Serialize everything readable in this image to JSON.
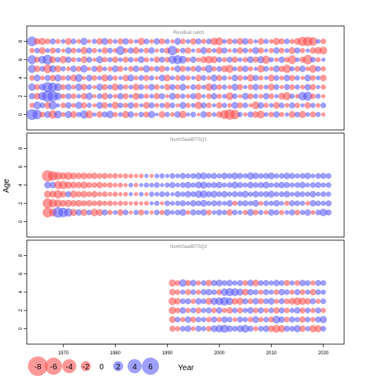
{
  "chart_data": {
    "type": "scatter",
    "subtype": "bubble-residuals",
    "ylabel": "Age",
    "xlabel": "Year",
    "x_ticks": [
      1970,
      1980,
      1990,
      2000,
      2010,
      2020
    ],
    "xlim": [
      1963,
      2024
    ],
    "colors": {
      "positive": "#5555ff",
      "negative": "#ff5555",
      "positive_fill": "rgba(80,80,255,0.55)",
      "negative_fill": "rgba(255,70,70,0.55)"
    },
    "legend": {
      "placement": "bottom-left",
      "values": [
        -8,
        -6,
        -4,
        -2,
        0,
        2,
        4,
        6
      ],
      "labels": [
        "-8",
        "-6",
        "-4",
        "-2",
        "0",
        "2",
        "4",
        "6"
      ]
    },
    "panels": [
      {
        "title": "Residual catch",
        "y_ticks": [
          0,
          2,
          4,
          6,
          8
        ],
        "ylim": [
          -1,
          9
        ],
        "ages": [
          0,
          1,
          2,
          3,
          4,
          5,
          6,
          7,
          8
        ],
        "year_start": 1964,
        "year_end": 2020,
        "residuals": [
          [
            2.4,
            1.8,
            -0.6,
            0.9,
            -1.4,
            1.2,
            -0.4,
            1.0,
            -0.9,
            0.5,
            1.3,
            -1.2,
            0.3,
            -0.8,
            0.7,
            1.1,
            -0.5,
            0.4,
            -1.0,
            0.8,
            -0.3,
            0.6,
            -0.7,
            1.0,
            0.2,
            -0.9,
            0.5,
            -0.4,
            0.8,
            -1.1,
            0.3,
            0.6,
            -0.2,
            0.9,
            -0.6,
            0.4,
            -0.8,
            -1.6,
            -2.2,
            -1.8,
            0.5,
            -0.3,
            0.7,
            -0.9,
            -1.2,
            0.4,
            -0.6,
            0.8,
            -0.5,
            0.3,
            -0.9,
            0.6,
            -1.0,
            0.4,
            -0.7,
            0.5,
            -0.3
          ],
          [
            -0.5,
            1.2,
            0.6,
            -0.9,
            1.4,
            0.3,
            -0.6,
            0.8,
            -0.4,
            1.0,
            -0.7,
            0.5,
            -0.3,
            0.9,
            -0.8,
            0.4,
            -1.0,
            0.6,
            -0.5,
            0.8,
            -0.6,
            0.3,
            -0.9,
            0.7,
            -0.4,
            0.5,
            -0.8,
            0.6,
            -0.3,
            0.9,
            -0.5,
            0.4,
            -1.1,
            0.7,
            -0.6,
            0.3,
            -0.8,
            0.5,
            -0.4,
            0.9,
            -0.7,
            0.6,
            -0.3,
            -1.2,
            0.8,
            -0.5,
            0.4,
            -0.9,
            0.6,
            -0.4,
            0.7,
            -0.6,
            0.3,
            -0.8,
            0.5,
            -0.4,
            0.6
          ],
          [
            0.8,
            -0.9,
            1.3,
            2.6,
            2.2,
            1.1,
            -0.5,
            0.7,
            -0.6,
            0.4,
            -0.8,
            1.0,
            -0.3,
            0.6,
            -0.9,
            0.5,
            -0.4,
            0.8,
            -0.7,
            0.3,
            -1.0,
            0.6,
            -0.5,
            0.4,
            -0.8,
            0.7,
            -0.3,
            0.9,
            -0.6,
            0.5,
            -0.4,
            0.7,
            -0.9,
            0.3,
            -0.6,
            0.8,
            -0.5,
            0.4,
            -1.2,
            0.6,
            -0.3,
            0.9,
            -0.7,
            0.5,
            -0.4,
            0.8,
            -0.6,
            0.3,
            -0.9,
            -1.3,
            0.5,
            -0.4,
            1.4,
            1.6,
            -0.6,
            0.5,
            -0.3
          ],
          [
            1.1,
            -0.7,
            0.9,
            2.0,
            1.6,
            1.2,
            -0.6,
            0.8,
            -0.4,
            1.0,
            -0.8,
            0.6,
            -0.3,
            0.9,
            -0.7,
            0.5,
            -1.0,
            0.7,
            -0.5,
            0.4,
            -0.9,
            0.6,
            -0.4,
            0.8,
            -0.6,
            0.3,
            -0.8,
            0.7,
            -0.5,
            0.9,
            -0.3,
            0.6,
            -0.7,
            0.4,
            -1.1,
            0.8,
            -0.6,
            0.5,
            -0.4,
            0.9,
            -0.7,
            0.3,
            -0.6,
            0.8,
            -0.5,
            0.4,
            -0.9,
            0.6,
            -0.3,
            0.7,
            -0.6,
            0.5,
            -0.4,
            0.8,
            -0.7,
            0.3,
            -0.5
          ],
          [
            -0.6,
            0.9,
            -0.4,
            0.7,
            -0.8,
            1.0,
            -0.5,
            0.6,
            -0.9,
            1.2,
            -0.3,
            0.8,
            -0.6,
            0.4,
            -1.0,
            0.7,
            -0.5,
            0.3,
            -0.8,
            0.9,
            -0.4,
            0.6,
            -0.7,
            0.5,
            -0.3,
            0.8,
            -0.9,
            0.4,
            -0.6,
            0.7,
            -0.5,
            0.3,
            -0.8,
            0.6,
            -0.4,
            0.9,
            -0.7,
            0.5,
            -0.3,
            0.8,
            -0.6,
            0.4,
            -1.0,
            0.7,
            -0.5,
            0.3,
            -0.9,
            0.6,
            -0.4,
            0.8,
            -0.7,
            0.5,
            -0.3,
            0.9,
            -0.6,
            0.4,
            -0.8
          ],
          [
            1.3,
            -0.8,
            0.6,
            -1.5,
            1.0,
            -0.9,
            0.5,
            -0.4,
            0.8,
            -0.6,
            1.1,
            -0.3,
            0.7,
            -0.9,
            0.4,
            -0.5,
            0.9,
            -0.7,
            0.3,
            -0.6,
            0.8,
            -0.4,
            1.0,
            -0.5,
            0.6,
            -0.8,
            0.4,
            -0.3,
            0.9,
            -0.7,
            0.5,
            -0.6,
            0.8,
            -0.4,
            1.2,
            -0.5,
            0.6,
            -0.9,
            -1.3,
            0.4,
            -0.7,
            0.8,
            -0.5,
            0.3,
            -1.1,
            0.6,
            -0.4,
            0.9,
            -0.7,
            -1.4,
            0.5,
            -0.6,
            0.8,
            -0.4,
            -1.2,
            0.6,
            -0.5
          ],
          [
            1.6,
            -0.7,
            1.2,
            1.9,
            -0.9,
            0.6,
            -1.1,
            0.8,
            -0.5,
            0.4,
            -0.9,
            0.7,
            -0.3,
            1.0,
            -0.6,
            0.5,
            -0.8,
            0.4,
            -0.7,
            0.6,
            -0.4,
            0.9,
            -0.5,
            0.3,
            -0.8,
            0.7,
            -0.6,
            1.3,
            1.6,
            1.2,
            -0.5,
            0.8,
            -0.4,
            -0.9,
            -1.2,
            -1.0,
            0.6,
            -0.5,
            0.7,
            -0.8,
            0.4,
            -0.6,
            0.9,
            -0.7,
            1.0,
            -1.3,
            0.5,
            -0.4,
            0.8,
            -0.6,
            -1.5,
            0.4,
            -0.7,
            -1.8,
            0.6,
            -0.5,
            0.3
          ],
          [
            -0.5,
            0.6,
            -0.9,
            0.4,
            -0.7,
            0.5,
            -0.3,
            0.8,
            -0.6,
            0.4,
            -1.0,
            0.7,
            -0.5,
            0.3,
            -0.8,
            0.6,
            -0.4,
            1.6,
            -0.5,
            0.7,
            -0.9,
            0.4,
            -0.6,
            0.8,
            -0.3,
            0.5,
            -0.7,
            1.8,
            -0.4,
            0.6,
            -0.8,
            0.3,
            -0.5,
            0.9,
            -0.6,
            0.4,
            -0.9,
            0.7,
            -0.3,
            0.5,
            -0.8,
            0.6,
            -0.4,
            0.9,
            -0.7,
            0.3,
            -0.5,
            0.8,
            -0.6,
            0.4,
            -0.9,
            0.7,
            -0.5,
            0.3,
            -0.8,
            -1.0,
            -1.2
          ],
          [
            1.9,
            -0.8,
            -1.0,
            -0.6,
            0.7,
            -0.5,
            0.4,
            -0.9,
            0.6,
            -0.4,
            1.0,
            -0.3,
            0.5,
            -0.8,
            0.9,
            -0.6,
            0.4,
            -0.7,
            0.8,
            -0.5,
            0.3,
            -1.0,
            0.6,
            -0.4,
            0.8,
            -0.7,
            0.5,
            -0.3,
            0.9,
            -0.6,
            0.4,
            -0.8,
            0.7,
            -0.5,
            0.6,
            -1.1,
            -1.3,
            0.4,
            -0.7,
            0.5,
            -0.9,
            0.8,
            -0.6,
            0.3,
            -0.8,
            0.5,
            -0.4,
            -1.0,
            -0.7,
            0.6,
            -0.5,
            -0.9,
            -1.7,
            -1.8,
            -1.5,
            0.4,
            -0.6
          ]
        ]
      },
      {
        "title": "NorthSeaIBTSQ1",
        "y_ticks": [
          0,
          2,
          4,
          6,
          8
        ],
        "ylim": [
          -1,
          9
        ],
        "ages": [
          1,
          2,
          3,
          4,
          5
        ],
        "year_start": 1967,
        "year_end": 2021,
        "residuals": [
          [
            -2.0,
            -1.2,
            2.2,
            1.8,
            1.4,
            -1.0,
            0.8,
            -0.9,
            0.6,
            -1.1,
            -0.9,
            0.7,
            -0.5,
            0.4,
            -0.8,
            0.6,
            -0.3,
            0.5,
            -0.7,
            0.4,
            -0.3,
            0.6,
            -0.5,
            0.8,
            0.4,
            0.6,
            0.9,
            -0.4,
            0.7,
            0.5,
            0.8,
            -0.6,
            0.4,
            0.7,
            0.5,
            -0.8,
            0.6,
            0.4,
            -0.5,
            0.9,
            -0.6,
            0.5,
            -0.4,
            0.8,
            0.6,
            -0.5,
            0.4,
            0.7,
            -0.6,
            0.5,
            0.8,
            -0.4,
            0.6,
            1.1,
            0.7
          ],
          [
            -2.0,
            -1.4,
            -1.2,
            -0.9,
            -1.0,
            -0.8,
            -0.9,
            -0.7,
            -0.8,
            -0.6,
            -0.7,
            -0.5,
            -0.6,
            -0.4,
            -0.5,
            -0.4,
            -0.3,
            -0.4,
            -0.3,
            -0.4,
            0.3,
            0.5,
            -0.3,
            0.6,
            0.4,
            0.5,
            0.7,
            0.4,
            0.8,
            0.6,
            0.9,
            0.5,
            0.7,
            0.6,
            0.4,
            0.8,
            -0.5,
            0.6,
            0.7,
            0.5,
            0.9,
            -0.4,
            0.6,
            0.5,
            0.8,
            0.4,
            -0.5,
            0.7,
            0.6,
            0.5,
            -0.4,
            0.8,
            0.6,
            0.5,
            0.7
          ],
          [
            -1.0,
            -0.9,
            -1.4,
            -0.8,
            0.7,
            -1.0,
            -0.7,
            -0.9,
            -0.6,
            -0.8,
            -0.5,
            -0.6,
            -0.4,
            -0.5,
            -0.3,
            -0.4,
            0.3,
            -0.3,
            0.4,
            -0.3,
            0.5,
            0.4,
            0.6,
            0.5,
            0.3,
            0.7,
            0.5,
            0.8,
            0.6,
            1.0,
            1.1,
            0.7,
            0.9,
            0.6,
            0.8,
            0.5,
            0.7,
            0.6,
            0.9,
            0.5,
            0.8,
            0.6,
            0.7,
            0.9,
            0.5,
            0.6,
            0.8,
            0.4,
            0.7,
            0.6,
            0.5,
            0.8,
            0.4,
            0.6,
            0.5
          ],
          [
            0.9,
            0.8,
            -1.2,
            -1.4,
            -1.0,
            -0.9,
            -0.8,
            -1.0,
            -0.7,
            -0.6,
            -0.8,
            -0.5,
            -0.6,
            -0.4,
            -0.5,
            -0.3,
            0.4,
            -0.4,
            0.3,
            0.5,
            0.4,
            0.6,
            0.3,
            0.5,
            0.7,
            0.4,
            0.6,
            0.8,
            0.5,
            0.9,
            1.0,
            0.6,
            0.7,
            0.8,
            0.5,
            0.6,
            0.9,
            0.7,
            0.5,
            0.8,
            0.6,
            0.7,
            0.9,
            0.5,
            0.6,
            0.8,
            0.7,
            0.5,
            0.6,
            0.8,
            0.4,
            0.6,
            0.7,
            0.5,
            0.6
          ],
          [
            -2.6,
            -1.8,
            -1.3,
            -1.0,
            -1.2,
            -0.9,
            -0.8,
            -0.9,
            -0.7,
            -0.8,
            -0.6,
            -0.7,
            -0.5,
            -0.6,
            -0.4,
            -0.5,
            -0.4,
            -0.3,
            -0.4,
            0.3,
            -0.3,
            0.4,
            0.5,
            0.3,
            0.6,
            0.4,
            0.7,
            0.5,
            0.6,
            0.8,
            0.9,
            0.6,
            0.7,
            0.5,
            0.8,
            0.6,
            0.9,
            0.7,
            0.5,
            1.0,
            0.8,
            0.6,
            0.7,
            0.9,
            0.5,
            0.6,
            0.8,
            0.7,
            0.5,
            0.6,
            0.8,
            0.4,
            0.6,
            0.7,
            0.6
          ]
        ]
      },
      {
        "title": "NorthSeaIBTSQ3",
        "y_ticks": [
          0,
          2,
          4,
          6,
          8
        ],
        "ylim": [
          -1,
          9
        ],
        "ages": [
          0,
          1,
          2,
          3,
          4,
          5
        ],
        "year_start": 1991,
        "year_end": 2020,
        "residuals": [
          [
            -0.7,
            -0.5,
            0.6,
            0.8,
            -0.4,
            0.7,
            0.5,
            -0.6,
            0.9,
            1.1,
            1.3,
            0.8,
            0.6,
            0.9,
            1.2,
            0.7,
            -0.5,
            0.6,
            0.8,
            -0.9,
            -1.2,
            -1.0,
            0.7,
            0.6,
            1.0,
            -0.8,
            0.5,
            -1.1,
            -1.0,
            0.6
          ],
          [
            -0.9,
            0.6,
            -0.5,
            0.8,
            -0.7,
            0.6,
            0.5,
            -0.6,
            0.7,
            -0.5,
            0.8,
            0.6,
            -0.4,
            0.7,
            0.5,
            -0.6,
            0.9,
            -0.5,
            0.6,
            -0.7,
            1.2,
            0.8,
            -0.6,
            0.7,
            0.5,
            -0.8,
            0.6,
            -0.5,
            0.7,
            1.0
          ],
          [
            -1.1,
            -0.6,
            0.8,
            -0.5,
            0.6,
            -0.7,
            0.5,
            0.7,
            -0.6,
            0.8,
            -0.5,
            -0.8,
            0.6,
            -0.7,
            0.5,
            0.8,
            -0.6,
            0.7,
            -0.5,
            0.6,
            -0.8,
            0.7,
            -0.6,
            0.5,
            0.8,
            -0.7,
            0.6,
            -0.5,
            0.7,
            -0.5
          ],
          [
            -1.2,
            -0.8,
            0.6,
            0.7,
            -0.5,
            0.8,
            0.6,
            -0.9,
            1.0,
            1.2,
            1.4,
            1.1,
            -0.8,
            -1.0,
            0.7,
            -0.6,
            0.8,
            -0.7,
            0.6,
            0.9,
            -0.5,
            0.7,
            -0.6,
            -0.9,
            -1.2,
            -1.0,
            -0.8,
            0.7,
            -0.5,
            0.6
          ],
          [
            -0.8,
            -0.6,
            0.5,
            -0.7,
            0.6,
            -0.5,
            0.7,
            0.8,
            0.6,
            -0.7,
            1.1,
            1.3,
            1.2,
            1.0,
            -0.9,
            0.8,
            0.6,
            -0.5,
            0.7,
            0.5,
            -0.6,
            0.8,
            0.6,
            -0.5,
            0.7,
            -0.6,
            0.5,
            -0.8,
            0.6,
            0.5
          ],
          [
            -1.0,
            -0.6,
            1.1,
            -0.7,
            0.8,
            -0.5,
            0.6,
            -0.8,
            0.7,
            0.9,
            0.6,
            0.8,
            0.5,
            0.7,
            -0.6,
            0.8,
            -0.9,
            0.6,
            0.7,
            0.5,
            0.8,
            0.6,
            -0.7,
            0.5,
            -0.6,
            0.8,
            0.6,
            -0.5,
            0.7,
            0.6
          ]
        ]
      }
    ]
  }
}
